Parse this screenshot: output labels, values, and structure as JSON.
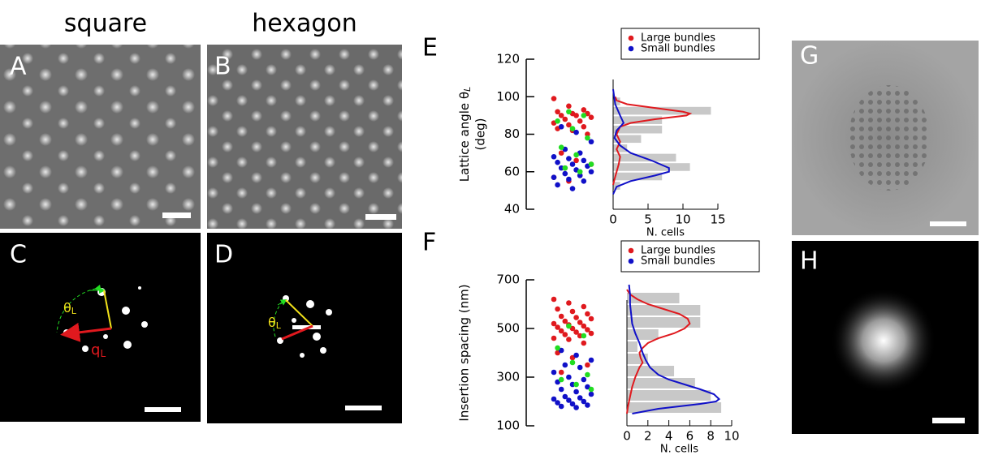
{
  "panels": {
    "titles": [
      "square",
      "hexagon"
    ],
    "labels": [
      "A",
      "B",
      "C",
      "D",
      "E",
      "F",
      "G",
      "H"
    ]
  },
  "annotations": {
    "theta": "θ",
    "theta_sub": "L",
    "q": "q",
    "q_sub": "L"
  },
  "chart_data": [
    {
      "type": "strip-histogram",
      "ylabel": "Lattice angle θ",
      "ylabel_sub": "L",
      "ylabel_unit": "(deg)",
      "xlabel": "N. cells",
      "ylim": [
        40,
        120
      ],
      "yticks": [
        40,
        60,
        80,
        100,
        120
      ],
      "xlim": [
        0,
        15
      ],
      "xticks": [
        0,
        5,
        10,
        15
      ],
      "bins": [
        50,
        55,
        60,
        65,
        70,
        75,
        80,
        85,
        90,
        95,
        100
      ],
      "counts": [
        1,
        7,
        11,
        9,
        2,
        4,
        7,
        7,
        14,
        1
      ],
      "bar_color": "#c8c8c8",
      "legend": "upper right",
      "series": [
        {
          "name": "Large bundles",
          "color": "#e0191e",
          "values": [
            99,
            95,
            93,
            92,
            91,
            91,
            90,
            90,
            89,
            88,
            87,
            86,
            85,
            84,
            83,
            82,
            80,
            70,
            66,
            64,
            62,
            58,
            57,
            55
          ],
          "curve_at": [
            100,
            98,
            96,
            94,
            92,
            91,
            90,
            88,
            86,
            84,
            80,
            76,
            72,
            68,
            64,
            60,
            56,
            53
          ],
          "curve_n": [
            0.3,
            0.5,
            2,
            6,
            10,
            11,
            10.5,
            6,
            2.5,
            1,
            0.5,
            1,
            0.5,
            1,
            0.8,
            0.5,
            0.2,
            0
          ]
        },
        {
          "name": "Small bundles",
          "color": "#1010c8",
          "values": [
            84,
            81,
            76,
            72,
            70,
            68,
            67,
            66,
            65,
            64,
            63,
            62,
            61,
            60,
            59,
            58,
            57,
            56,
            55,
            53,
            51
          ],
          "curve_at": [
            104,
            96,
            90,
            86,
            82,
            78,
            74,
            70,
            66,
            62,
            60,
            58,
            55,
            52,
            48
          ],
          "curve_n": [
            0,
            0.3,
            1,
            1.5,
            0.5,
            0.2,
            1,
            2.5,
            5.5,
            8,
            8,
            6,
            2.5,
            0.5,
            0
          ]
        },
        {
          "color": "#22dd22",
          "values": [
            92,
            90,
            87,
            83,
            78,
            73,
            69,
            64,
            62,
            60
          ]
        }
      ]
    },
    {
      "type": "strip-histogram",
      "ylabel": "Insertion spacing (nm)",
      "xlabel": "N. cells",
      "ylim": [
        100,
        700
      ],
      "yticks": [
        100,
        300,
        500,
        700
      ],
      "xlim": [
        0,
        10
      ],
      "xticks": [
        0,
        2,
        4,
        6,
        8,
        10
      ],
      "bins": [
        150,
        200,
        250,
        300,
        350,
        400,
        450,
        500,
        550,
        600,
        650
      ],
      "counts": [
        9,
        8,
        6.5,
        4.5,
        2,
        1,
        3,
        7,
        7,
        5
      ],
      "bar_color": "#c8c8c8",
      "legend": "upper right",
      "series": [
        {
          "name": "Large bundles",
          "color": "#e0191e",
          "values": [
            620,
            605,
            590,
            580,
            570,
            560,
            550,
            545,
            540,
            530,
            525,
            520,
            515,
            510,
            505,
            500,
            495,
            490,
            485,
            480,
            475,
            470,
            460,
            455,
            440,
            400,
            380,
            350,
            320
          ],
          "curve_at": [
            660,
            640,
            620,
            600,
            580,
            560,
            540,
            520,
            500,
            480,
            460,
            440,
            420,
            400,
            380,
            360,
            340,
            300,
            260,
            220,
            180,
            150
          ],
          "curve_n": [
            0,
            0.3,
            1,
            2,
            3.5,
            5,
            5.8,
            6,
            5.5,
            4.5,
            3,
            2,
            1.5,
            1.2,
            1.3,
            1.5,
            1.2,
            0.8,
            0.5,
            0.3,
            0.1,
            0
          ]
        },
        {
          "name": "Small bundles",
          "color": "#1010c8",
          "values": [
            410,
            390,
            370,
            350,
            340,
            320,
            300,
            290,
            280,
            270,
            260,
            250,
            240,
            230,
            220,
            215,
            210,
            205,
            200,
            195,
            190,
            185,
            180,
            175
          ],
          "curve_at": [
            680,
            640,
            600,
            560,
            520,
            480,
            440,
            400,
            370,
            340,
            310,
            290,
            270,
            250,
            230,
            210,
            200,
            190,
            170,
            150
          ],
          "curve_n": [
            0.2,
            0.3,
            0.3,
            0.4,
            0.5,
            0.8,
            1.2,
            1.5,
            1.8,
            2.2,
            3,
            4,
            5.5,
            7,
            8.3,
            8.8,
            8.5,
            7,
            3,
            0.5
          ]
        },
        {
          "color": "#22dd22",
          "values": [
            510,
            470,
            420,
            360,
            310,
            290,
            270,
            250
          ]
        }
      ]
    }
  ]
}
